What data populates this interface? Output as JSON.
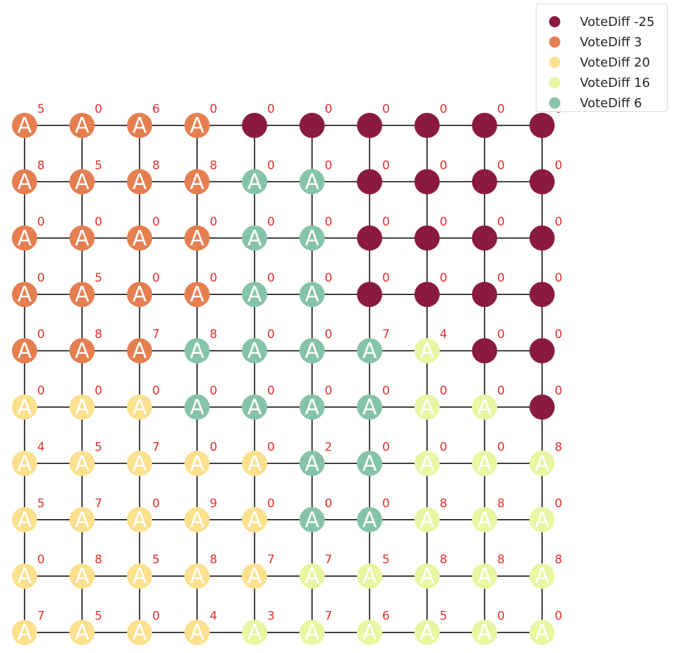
{
  "legend": {
    "items": [
      {
        "label": "VoteDiff -25",
        "color": "#8b1a42"
      },
      {
        "label": "VoteDiff 3",
        "color": "#e67e50"
      },
      {
        "label": "VoteDiff 20",
        "color": "#fbe08e"
      },
      {
        "label": "VoteDiff 16",
        "color": "#e9f6a2"
      },
      {
        "label": "VoteDiff 6",
        "color": "#85c4a9"
      }
    ]
  },
  "grid": {
    "node_letter": "A",
    "number_color": "#e23030",
    "edge_color": "#000000",
    "rows": [
      {
        "colors": [
          1,
          1,
          1,
          1,
          0,
          0,
          0,
          0,
          0,
          0
        ],
        "letters": [
          1,
          1,
          1,
          1,
          0,
          0,
          0,
          0,
          0,
          0
        ],
        "numbers": [
          5,
          0,
          6,
          0,
          0,
          0,
          0,
          0,
          0,
          0
        ]
      },
      {
        "colors": [
          1,
          1,
          1,
          1,
          4,
          4,
          0,
          0,
          0,
          0
        ],
        "letters": [
          1,
          1,
          1,
          1,
          1,
          1,
          0,
          0,
          0,
          0
        ],
        "numbers": [
          8,
          5,
          8,
          8,
          0,
          0,
          0,
          0,
          0,
          0
        ]
      },
      {
        "colors": [
          1,
          1,
          1,
          1,
          4,
          4,
          0,
          0,
          0,
          0
        ],
        "letters": [
          1,
          1,
          1,
          1,
          1,
          1,
          0,
          0,
          0,
          0
        ],
        "numbers": [
          0,
          0,
          0,
          0,
          0,
          0,
          0,
          0,
          0,
          0
        ]
      },
      {
        "colors": [
          1,
          1,
          1,
          1,
          4,
          4,
          0,
          0,
          0,
          0
        ],
        "letters": [
          1,
          1,
          1,
          1,
          1,
          1,
          0,
          0,
          0,
          0
        ],
        "numbers": [
          0,
          5,
          0,
          0,
          0,
          0,
          0,
          0,
          0,
          0
        ]
      },
      {
        "colors": [
          1,
          1,
          1,
          4,
          4,
          4,
          4,
          3,
          0,
          0
        ],
        "letters": [
          1,
          1,
          1,
          1,
          1,
          1,
          1,
          1,
          0,
          0
        ],
        "numbers": [
          0,
          8,
          7,
          8,
          0,
          0,
          7,
          4,
          0,
          0
        ]
      },
      {
        "colors": [
          2,
          2,
          2,
          4,
          4,
          4,
          4,
          3,
          3,
          0
        ],
        "letters": [
          1,
          1,
          1,
          1,
          1,
          1,
          1,
          1,
          1,
          0
        ],
        "numbers": [
          0,
          0,
          0,
          0,
          0,
          0,
          0,
          0,
          0,
          0
        ]
      },
      {
        "colors": [
          2,
          2,
          2,
          2,
          2,
          4,
          4,
          3,
          3,
          3
        ],
        "letters": [
          1,
          1,
          1,
          1,
          1,
          1,
          1,
          1,
          1,
          1
        ],
        "numbers": [
          4,
          5,
          7,
          0,
          0,
          2,
          0,
          0,
          0,
          8
        ]
      },
      {
        "colors": [
          2,
          2,
          2,
          2,
          2,
          4,
          4,
          3,
          3,
          3
        ],
        "letters": [
          1,
          1,
          1,
          1,
          1,
          1,
          1,
          1,
          1,
          1
        ],
        "numbers": [
          5,
          7,
          0,
          9,
          0,
          0,
          0,
          8,
          8,
          0
        ]
      },
      {
        "colors": [
          2,
          2,
          2,
          2,
          2,
          3,
          3,
          3,
          3,
          3
        ],
        "letters": [
          1,
          1,
          1,
          1,
          1,
          1,
          1,
          1,
          1,
          1
        ],
        "numbers": [
          0,
          8,
          5,
          8,
          7,
          7,
          5,
          8,
          8,
          8
        ]
      },
      {
        "colors": [
          2,
          2,
          2,
          2,
          3,
          3,
          3,
          3,
          3,
          3
        ],
        "letters": [
          1,
          1,
          1,
          1,
          1,
          1,
          1,
          1,
          1,
          1
        ],
        "numbers": [
          7,
          5,
          0,
          4,
          3,
          7,
          6,
          5,
          0,
          0
        ]
      }
    ]
  }
}
